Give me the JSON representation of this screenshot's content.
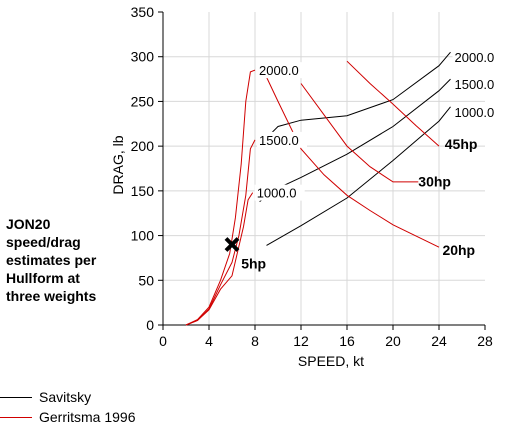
{
  "chart_data": {
    "type": "line",
    "xlabel": "SPEED, kt",
    "ylabel": "DRAG, lb",
    "xlim": [
      0,
      28
    ],
    "ylim": [
      0,
      350
    ],
    "xticks": [
      "0",
      "4",
      "8",
      "12",
      "16",
      "20",
      "24",
      "28"
    ],
    "yticks": [
      "0",
      "50",
      "100",
      "150",
      "200",
      "250",
      "300",
      "350"
    ],
    "grid": true,
    "colors": {
      "savitsky": "#000000",
      "gerritsma": "#d00000"
    },
    "series": [
      {
        "name": "Savitsky",
        "group": "savitsky",
        "label": "1000.0",
        "points": [
          [
            9,
            89
          ],
          [
            12,
            111
          ],
          [
            16,
            142
          ],
          [
            20,
            184
          ],
          [
            24,
            228
          ],
          [
            25,
            244
          ]
        ]
      },
      {
        "name": "Savitsky",
        "group": "savitsky",
        "label": "1500.0",
        "points": [
          [
            8.4,
            138
          ],
          [
            10,
            153
          ],
          [
            12,
            165
          ],
          [
            16,
            191
          ],
          [
            20,
            222
          ],
          [
            24,
            262
          ],
          [
            25,
            275
          ]
        ]
      },
      {
        "name": "Savitsky",
        "group": "savitsky",
        "label": "2000.0",
        "points": [
          [
            8.3,
            200
          ],
          [
            10,
            222
          ],
          [
            12,
            229
          ],
          [
            16,
            234
          ],
          [
            20,
            252
          ],
          [
            24,
            290
          ],
          [
            25,
            305
          ]
        ]
      },
      {
        "name": "Gerritsma 1996",
        "group": "gerritsma",
        "label": "",
        "points": [
          [
            2,
            0
          ],
          [
            3,
            5
          ],
          [
            4,
            17
          ],
          [
            5,
            40
          ],
          [
            6,
            55
          ],
          [
            7,
            110
          ],
          [
            7.4,
            140
          ],
          [
            7.8,
            148
          ]
        ]
      },
      {
        "name": "Gerritsma 1996",
        "group": "gerritsma",
        "label": "",
        "points": [
          [
            2,
            0
          ],
          [
            3,
            5
          ],
          [
            4,
            18
          ],
          [
            5,
            45
          ],
          [
            6,
            70
          ],
          [
            6.6,
            100
          ],
          [
            7.2,
            145
          ],
          [
            7.6,
            197
          ],
          [
            8,
            207
          ]
        ]
      },
      {
        "name": "Gerritsma 1996",
        "group": "gerritsma",
        "label": "",
        "points": [
          [
            2,
            0
          ],
          [
            3,
            6
          ],
          [
            4,
            20
          ],
          [
            5,
            50
          ],
          [
            5.8,
            80
          ],
          [
            6.3,
            120
          ],
          [
            6.8,
            180
          ],
          [
            7.2,
            250
          ],
          [
            7.6,
            283
          ],
          [
            8,
            285
          ]
        ]
      },
      {
        "name": "Gerritsma 1996",
        "group": "gerritsma",
        "label": "",
        "points": [
          [
            8.6,
            288
          ],
          [
            10,
            250
          ],
          [
            12,
            197
          ],
          [
            14,
            168
          ],
          [
            16,
            145
          ],
          [
            18,
            128
          ],
          [
            20,
            112
          ],
          [
            24,
            87
          ]
        ]
      },
      {
        "name": "Gerritsma 1996",
        "group": "gerritsma",
        "label": "",
        "points": [
          [
            12,
            270
          ],
          [
            14,
            235
          ],
          [
            16,
            200
          ],
          [
            18,
            177
          ],
          [
            20,
            160
          ],
          [
            22.2,
            160
          ]
        ]
      },
      {
        "name": "Gerritsma 1996",
        "group": "gerritsma",
        "label": "",
        "points": [
          [
            16,
            295
          ],
          [
            18,
            270
          ],
          [
            20,
            247
          ],
          [
            22,
            223
          ],
          [
            24,
            200
          ]
        ]
      }
    ],
    "power_labels": [
      {
        "text": "45hp",
        "x": 24.5,
        "y": 197
      },
      {
        "text": "30hp",
        "x": 22.2,
        "y": 155
      },
      {
        "text": "20hp",
        "x": 24.3,
        "y": 78
      },
      {
        "text": "5hp",
        "x": 6.8,
        "y": 63
      }
    ],
    "marker": {
      "symbol": "x",
      "x": 6,
      "y": 90
    },
    "legend": [
      {
        "label": "Savitsky",
        "group": "savitsky"
      },
      {
        "label": "Gerritsma 1996",
        "group": "gerritsma"
      }
    ],
    "annotation": [
      "JON20",
      "speed/drag",
      "estimates per",
      "Hullform at",
      "three weights"
    ]
  }
}
